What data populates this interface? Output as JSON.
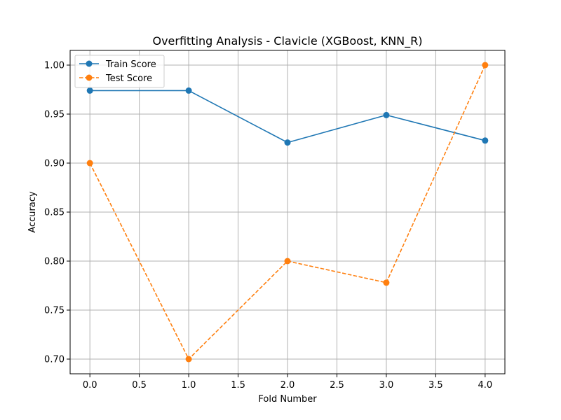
{
  "chart_data": {
    "type": "line",
    "title": "Overfitting Analysis - Clavicle (XGBoost, KNN_R)",
    "xlabel": "Fold Number",
    "ylabel": "Accuracy",
    "x": [
      0,
      1,
      2,
      3,
      4
    ],
    "xlim": [
      -0.2,
      4.2
    ],
    "ylim": [
      0.685,
      1.015
    ],
    "xticks": [
      0.0,
      0.5,
      1.0,
      1.5,
      2.0,
      2.5,
      3.0,
      3.5,
      4.0
    ],
    "xtick_labels": [
      "0.0",
      "0.5",
      "1.0",
      "1.5",
      "2.0",
      "2.5",
      "3.0",
      "3.5",
      "4.0"
    ],
    "yticks": [
      0.7,
      0.75,
      0.8,
      0.85,
      0.9,
      0.95,
      1.0
    ],
    "ytick_labels": [
      "0.70",
      "0.75",
      "0.80",
      "0.85",
      "0.90",
      "0.95",
      "1.00"
    ],
    "grid": true,
    "legend_position": "upper-left",
    "series": [
      {
        "name": "Train Score",
        "values": [
          0.974,
          0.974,
          0.921,
          0.949,
          0.923
        ],
        "color": "#1f77b4",
        "dashed": false,
        "marker": "circle"
      },
      {
        "name": "Test Score",
        "values": [
          0.9,
          0.7,
          0.8,
          0.778,
          1.0
        ],
        "color": "#ff7f0e",
        "dashed": true,
        "marker": "circle"
      }
    ]
  }
}
